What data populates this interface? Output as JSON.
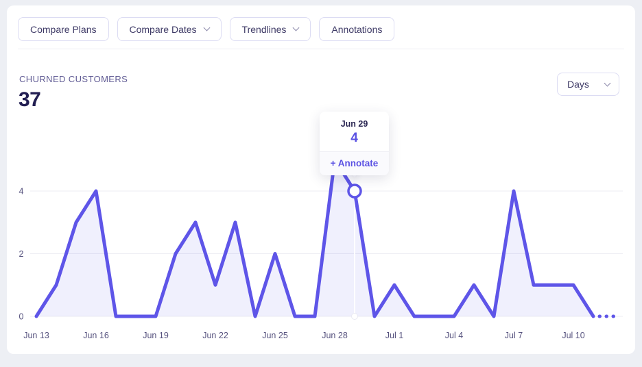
{
  "toolbar": {
    "buttons": [
      {
        "label": "Compare Plans",
        "has_chevron": false
      },
      {
        "label": "Compare Dates",
        "has_chevron": true
      },
      {
        "label": "Trendlines",
        "has_chevron": true
      },
      {
        "label": "Annotations",
        "has_chevron": false
      }
    ]
  },
  "header": {
    "metric_label": "CHURNED CUSTOMERS",
    "metric_value": "37",
    "interval_label": "Days"
  },
  "tooltip": {
    "date": "Jun 29",
    "value": "4",
    "action_label": "+ Annotate"
  },
  "chart_data": {
    "type": "area",
    "title": "CHURNED CUSTOMERS",
    "x": [
      "Jun 13",
      "Jun 14",
      "Jun 15",
      "Jun 16",
      "Jun 17",
      "Jun 18",
      "Jun 19",
      "Jun 20",
      "Jun 21",
      "Jun 22",
      "Jun 23",
      "Jun 24",
      "Jun 25",
      "Jun 26",
      "Jun 27",
      "Jun 28",
      "Jun 29",
      "Jun 30",
      "Jul 1",
      "Jul 2",
      "Jul 3",
      "Jul 4",
      "Jul 5",
      "Jul 6",
      "Jul 7",
      "Jul 8",
      "Jul 9",
      "Jul 10",
      "Jul 11",
      "Jul 12"
    ],
    "values": [
      0,
      1,
      3,
      4,
      0,
      0,
      0,
      2,
      3,
      1,
      3,
      0,
      2,
      0,
      0,
      5,
      4,
      0,
      1,
      0,
      0,
      0,
      1,
      0,
      4,
      1,
      1,
      1,
      0,
      0
    ],
    "total": 37,
    "x_tick_labels": [
      "Jun 13",
      "Jun 16",
      "Jun 19",
      "Jun 22",
      "Jun 25",
      "Jun 28",
      "Jul 1",
      "Jul 4",
      "Jul 7",
      "Jul 10"
    ],
    "x_tick_step": 3,
    "y_ticks": [
      0,
      2,
      4
    ],
    "ylim": [
      0,
      5
    ],
    "grid": "horizontal-only",
    "highlight": {
      "index": 16,
      "label": "Jun 29",
      "value": 4
    },
    "solid_end_index": 28,
    "dotted_tail": true,
    "line_color": "#5e55e8",
    "fill_color": "rgba(94,85,232,0.09)",
    "grid_color": "#ededf3",
    "axis_text_color": "#56527e"
  },
  "colors": {
    "accent": "#5e55e8",
    "page_bg": "#edeff4",
    "card_bg": "#ffffff",
    "button_border": "#dcdcf3",
    "button_text": "#3e3a66",
    "metric_label_text": "#5f5a93",
    "metric_value_text": "#221e52"
  }
}
